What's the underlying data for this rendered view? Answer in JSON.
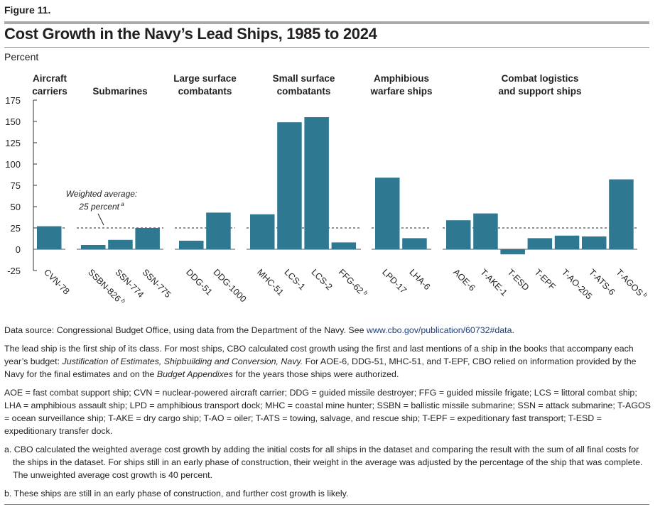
{
  "figure_label": "Figure 11.",
  "title": "Cost Growth in the Navy’s Lead Ships, 1985 to 2024",
  "unit_label": "Percent",
  "chart_data": {
    "type": "bar",
    "title": "Cost Growth in the Navy’s Lead Ships, 1985 to 2024",
    "ylabel": "Percent",
    "ylim": [
      -25,
      175
    ],
    "yticks": [
      "175",
      "150",
      "125",
      "100",
      "75",
      "50",
      "25",
      "0",
      "-25"
    ],
    "reference_line": {
      "value": 25,
      "label1": "Weighted average:",
      "label2": "25 percent",
      "sup": "a"
    },
    "bar_color": "#2e7891",
    "groups": [
      {
        "name1": "Aircraft",
        "name2": "carriers",
        "ships": [
          {
            "label": "CVN-78",
            "value": 27,
            "sup": ""
          }
        ]
      },
      {
        "name1": "",
        "name2": "Submarines",
        "ships": [
          {
            "label": "SSBN-826",
            "value": 5,
            "sup": "b"
          },
          {
            "label": "SSN-774",
            "value": 11,
            "sup": ""
          },
          {
            "label": "SSN-775",
            "value": 25,
            "sup": ""
          }
        ]
      },
      {
        "name1": "Large surface",
        "name2": "combatants",
        "ships": [
          {
            "label": "DDG-51",
            "value": 10,
            "sup": ""
          },
          {
            "label": "DDG-1000",
            "value": 43,
            "sup": ""
          }
        ]
      },
      {
        "name1": "Small surface",
        "name2": "combatants",
        "ships": [
          {
            "label": "MHC-51",
            "value": 41,
            "sup": ""
          },
          {
            "label": "LCS-1",
            "value": 149,
            "sup": ""
          },
          {
            "label": "LCS-2",
            "value": 155,
            "sup": ""
          },
          {
            "label": "FFG-62",
            "value": 8,
            "sup": "b"
          }
        ]
      },
      {
        "name1": "Amphibious",
        "name2": "warfare ships",
        "ships": [
          {
            "label": "LPD-17",
            "value": 84,
            "sup": ""
          },
          {
            "label": "LHA-6",
            "value": 13,
            "sup": ""
          }
        ]
      },
      {
        "name1": "Combat logistics",
        "name2": "and support ships",
        "ships": [
          {
            "label": "AOE-6",
            "value": 34,
            "sup": ""
          },
          {
            "label": "T-AKE-1",
            "value": 42,
            "sup": ""
          },
          {
            "label": "T-ESD",
            "value": -6,
            "sup": ""
          },
          {
            "label": "T-EPF",
            "value": 13,
            "sup": ""
          },
          {
            "label": "T-AO-205",
            "value": 16,
            "sup": ""
          },
          {
            "label": "T-ATS-6",
            "value": 15,
            "sup": ""
          },
          {
            "label": "T-AGOS",
            "value": 82,
            "sup": "b"
          }
        ]
      }
    ]
  },
  "notes": {
    "source_prefix": "Data source: Congressional Budget Office, using data from the Department of the Navy. See ",
    "source_link": "www.cbo.gov/publication/60732#data",
    "source_suffix": ".",
    "p1a": "The lead ship is the first ship of its class. For most ships, CBO calculated cost growth using the first and last mentions of a ship in the books that accompany each year’s budget: ",
    "p1b": "Justification of Estimates, Shipbuilding and Conversion, Navy.",
    "p1c": " For AOE-6, DDG-51, MHC-51, and T-EPF, CBO relied on information provided by the Navy for the final estimates and on the ",
    "p1d": "Budget Appendixes",
    "p1e": " for the years those ships were authorized.",
    "abbrev": "AOE = fast combat support ship; CVN = nuclear-powered aircraft carrier; DDG = guided missile destroyer; FFG = guided missile frigate; LCS = littoral combat ship; LHA = amphibious assault ship; LPD = amphibious transport dock; MHC = coastal mine hunter; SSBN = ballistic missile submarine; SSN = attack submarine; T-AGOS = ocean surveillance ship; T-AKE = dry cargo ship; T-AO = oiler; T-ATS = towing, salvage, and rescue ship; T-EPF = expeditionary fast transport; T-ESD = expeditionary transfer dock.",
    "note_a": "a. CBO calculated the weighted average cost growth by adding the initial costs for all ships in the dataset and comparing the result with the sum of all final costs for the ships in the dataset. For ships still in an early phase of construction, their weight in the average was adjusted by the percentage of the ship that was complete. The unweighted average cost growth is 40 percent.",
    "note_b": "b. These ships are still in an early phase of construction, and further cost growth is likely."
  }
}
